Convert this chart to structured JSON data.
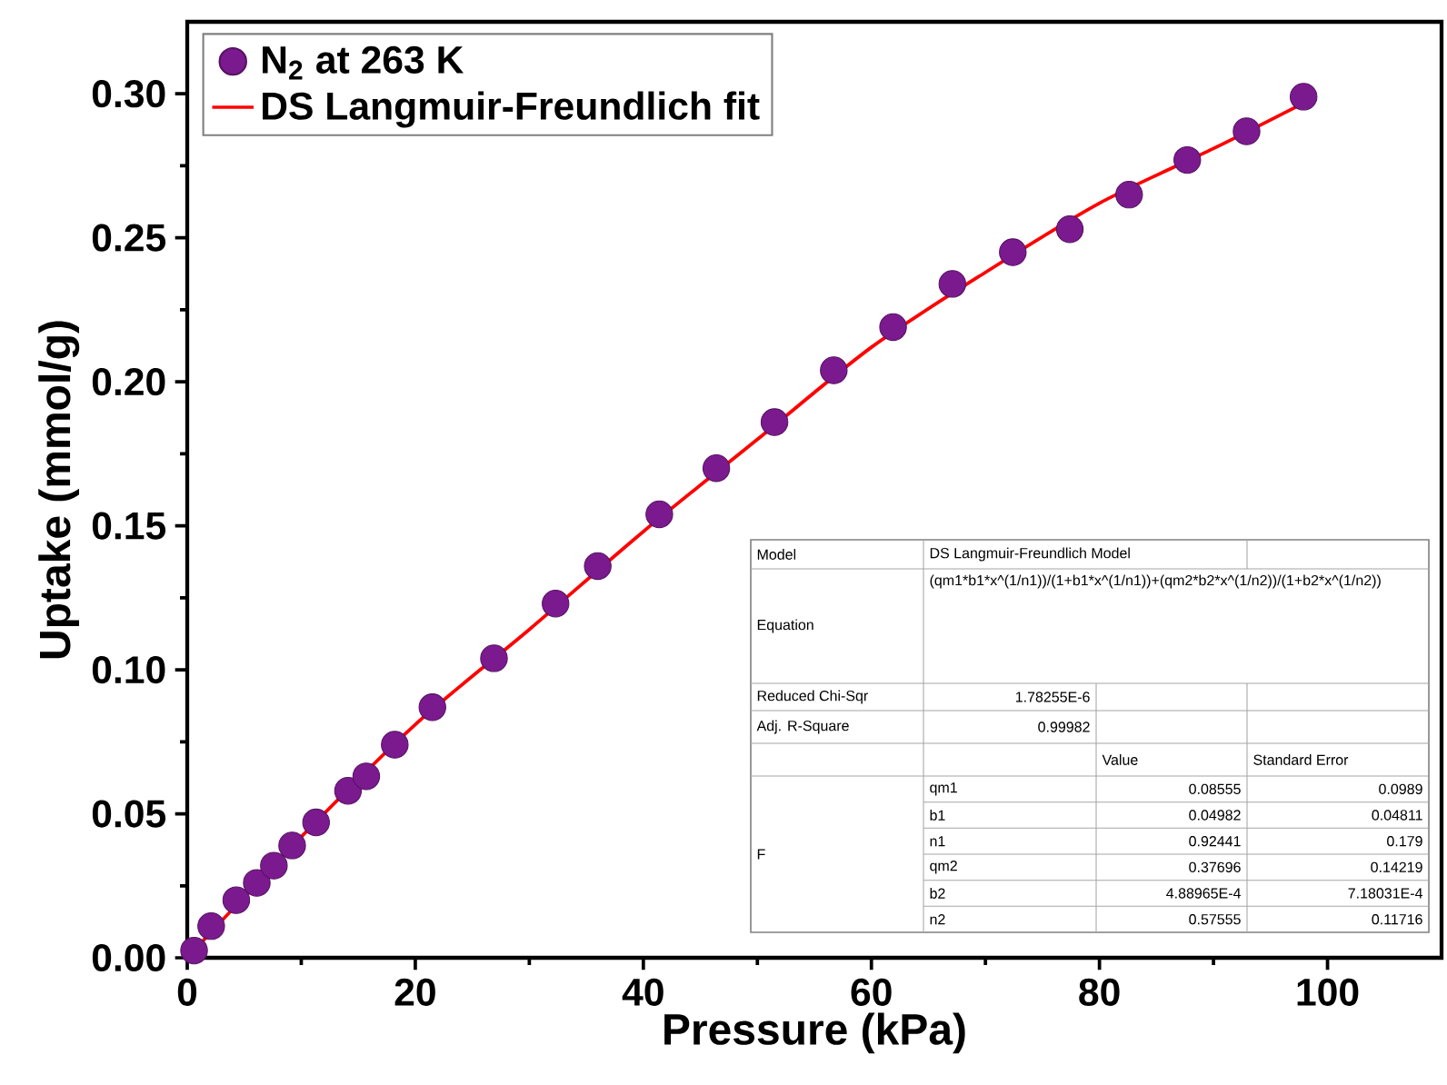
{
  "chart_data": {
    "type": "scatter",
    "xlabel": "Pressure (kPa)",
    "ylabel": "Uptake (mmol/g)",
    "xlim": [
      0,
      110
    ],
    "ylim": [
      0,
      0.325
    ],
    "xticks": [
      0,
      20,
      40,
      60,
      80,
      100
    ],
    "yticks": [
      {
        "value": 0,
        "label": "0.00"
      },
      {
        "value": 0.05,
        "label": "0.05"
      },
      {
        "value": 0.1,
        "label": "0.10"
      },
      {
        "value": 0.15,
        "label": "0.15"
      },
      {
        "value": 0.2,
        "label": "0.20"
      },
      {
        "value": 0.25,
        "label": "0.25"
      },
      {
        "value": 0.3,
        "label": "0.30"
      }
    ],
    "legend": "top left",
    "series": [
      {
        "name": "N$_{2}$ at 263 K",
        "marker": "circle",
        "color": "#7b1a8e",
        "x": [
          0.6,
          2.1,
          4.3,
          6.1,
          7.6,
          9.2,
          11.3,
          14.1,
          15.7,
          18.2,
          21.5,
          26.9,
          32.3,
          36.0,
          41.4,
          46.4,
          51.5,
          56.7,
          61.9,
          67.1,
          72.4,
          77.4,
          82.6,
          87.7,
          92.9,
          97.9
        ],
        "values": [
          0.0025,
          0.011,
          0.02,
          0.026,
          0.032,
          0.039,
          0.047,
          0.058,
          0.063,
          0.074,
          0.087,
          0.104,
          0.123,
          0.136,
          0.154,
          0.17,
          0.186,
          0.204,
          0.219,
          0.234,
          0.245,
          0.253,
          0.265,
          0.277,
          0.287,
          0.299
        ]
      },
      {
        "name": "DS Langmuir-Freundlich fit",
        "type": "line",
        "color": "#ff0000",
        "x": [
          0,
          10,
          20,
          30,
          40,
          50,
          60,
          70,
          80,
          90,
          98.5
        ],
        "values": [
          0,
          0.042,
          0.081,
          0.114,
          0.148,
          0.18,
          0.212,
          0.238,
          0.262,
          0.281,
          0.298
        ]
      }
    ],
    "annotations": [
      "Model",
      "DS Langmuir-Freundlich Model",
      "Equation",
      "(qm1*b1*x^(1/n1))/(1+b1*x^(1/n1))+(qm2*b2*x^(1/n2))/(1+b2*x^(1/n2))",
      "Reduced Chi-Sqr",
      "1.78255E-6",
      "Adj. R-Square",
      "0.99982",
      "Value",
      "Standard Error",
      "F",
      "qm1",
      "0.08555",
      "0.0989",
      "b1",
      "0.04982",
      "0.04811",
      "n1",
      "0.92441",
      "0.179",
      "qm2",
      "0.37696",
      "0.14219",
      "b2",
      "4.88965E-4",
      "7.18031E-4",
      "n2",
      "0.57555",
      "0.11716"
    ]
  }
}
